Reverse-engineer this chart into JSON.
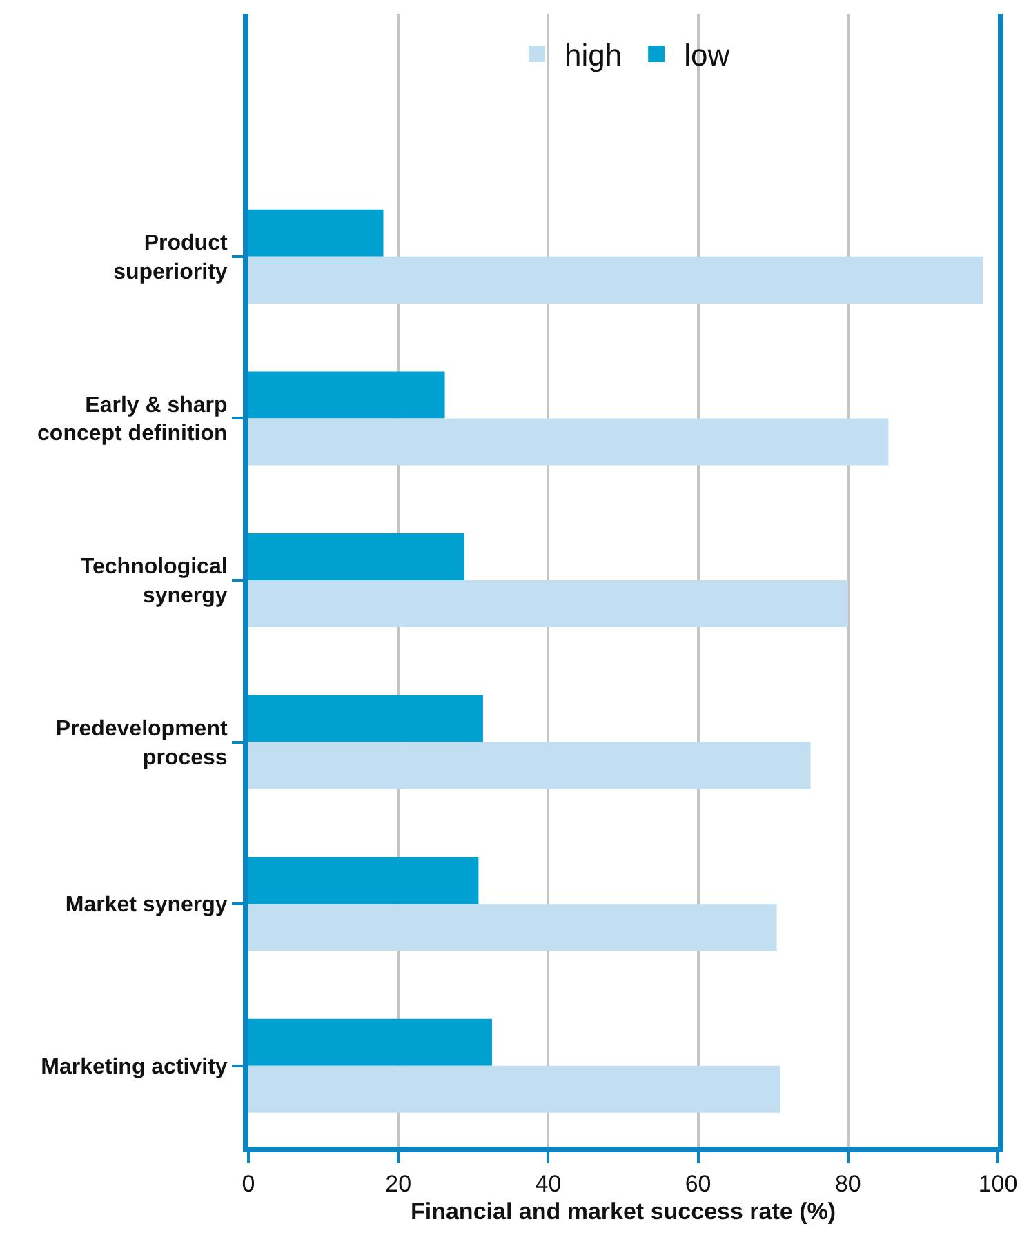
{
  "chart_data": {
    "type": "bar",
    "orientation": "horizontal",
    "xlabel": "Financial and market success rate (%)",
    "categories": [
      "Product superiority",
      "Early & sharp concept definition",
      "Technological synergy",
      "Predevelopment process",
      "Market synergy",
      "Marketing activity"
    ],
    "series": [
      {
        "name": "high",
        "color": "#c2dff1",
        "values": [
          98,
          85.4,
          80,
          75,
          70.5,
          71
        ]
      },
      {
        "name": "low",
        "color": "#00a0d0",
        "values": [
          18,
          26.2,
          28.8,
          31.3,
          30.7,
          32.5
        ]
      }
    ],
    "xlim": [
      0,
      100
    ],
    "xticks": [
      0,
      20,
      40,
      60,
      80,
      100
    ],
    "grid": "x",
    "legend": "top"
  }
}
